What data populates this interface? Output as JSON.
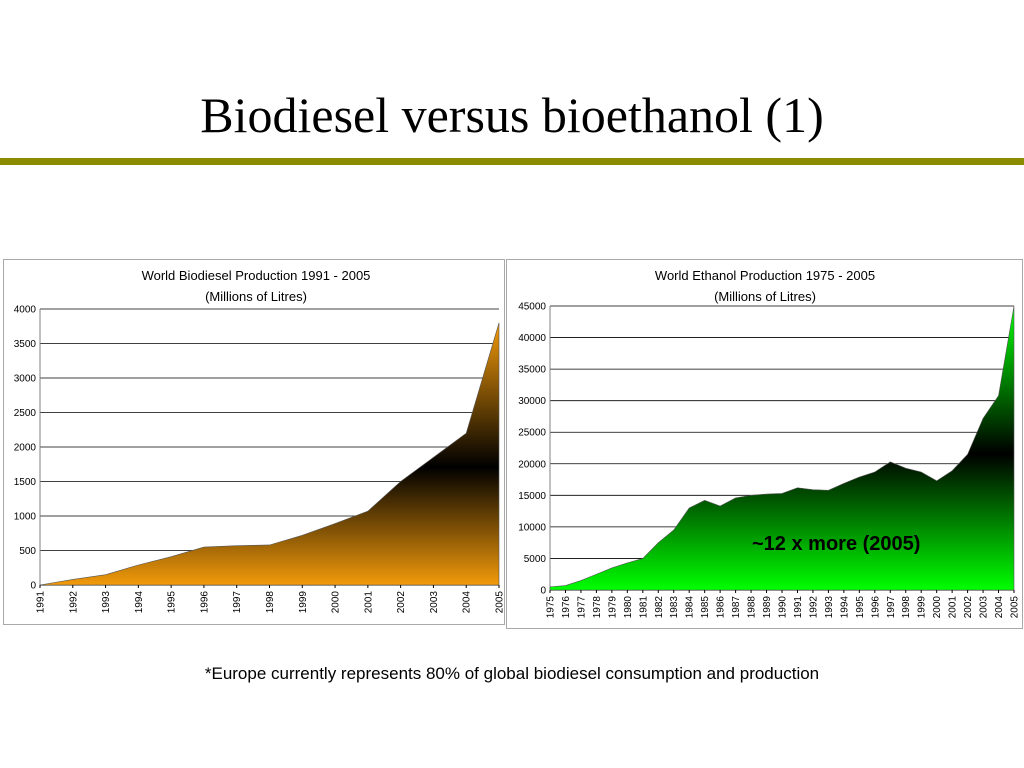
{
  "slide": {
    "title": "Biodiesel versus bioethanol (1)",
    "footnote": "*Europe currently represents 80% of global biodiesel consumption and production",
    "annotation": "~12 x more (2005)"
  },
  "colors": {
    "rule": "#8c8c00",
    "biodiesel_fill": "#f29a0a",
    "ethanol_fill": "#00ff00",
    "gradient_peak": "#000000"
  },
  "chart_data": [
    {
      "type": "area",
      "title": "World Biodiesel Production 1991 - 2005",
      "subtitle": "(Millions of Litres)",
      "xlabel": "",
      "ylabel": "",
      "x": [
        "1991",
        "1992",
        "1993",
        "1994",
        "1995",
        "1996",
        "1997",
        "1998",
        "1999",
        "2000",
        "2001",
        "2002",
        "2003",
        "2004",
        "2005"
      ],
      "values": [
        0,
        80,
        150,
        290,
        410,
        550,
        570,
        580,
        720,
        890,
        1070,
        1500,
        1850,
        2200,
        3800
      ],
      "ylim": [
        0,
        4000
      ],
      "yticks": [
        0,
        500,
        1000,
        1500,
        2000,
        2500,
        3000,
        3500,
        4000
      ],
      "grid": true,
      "legend": "none"
    },
    {
      "type": "area",
      "title": "World Ethanol Production 1975 - 2005",
      "subtitle": "(Millions of Litres)",
      "xlabel": "",
      "ylabel": "",
      "x": [
        "1975",
        "1976",
        "1977",
        "1978",
        "1979",
        "1980",
        "1981",
        "1982",
        "1983",
        "1984",
        "1985",
        "1986",
        "1987",
        "1988",
        "1989",
        "1990",
        "1991",
        "1992",
        "1993",
        "1994",
        "1995",
        "1996",
        "1997",
        "1998",
        "1999",
        "2000",
        "2001",
        "2002",
        "2003",
        "2004",
        "2005"
      ],
      "values": [
        500,
        700,
        1500,
        2500,
        3500,
        4300,
        5000,
        7500,
        9500,
        13000,
        14200,
        13300,
        14600,
        15000,
        15200,
        15300,
        16200,
        15900,
        15800,
        16900,
        17900,
        18700,
        20300,
        19300,
        18700,
        17300,
        18900,
        21500,
        27200,
        30800,
        45000
      ],
      "ylim": [
        0,
        45000
      ],
      "yticks": [
        0,
        5000,
        10000,
        15000,
        20000,
        25000,
        30000,
        35000,
        40000,
        45000
      ],
      "grid": true,
      "legend": "none"
    }
  ]
}
